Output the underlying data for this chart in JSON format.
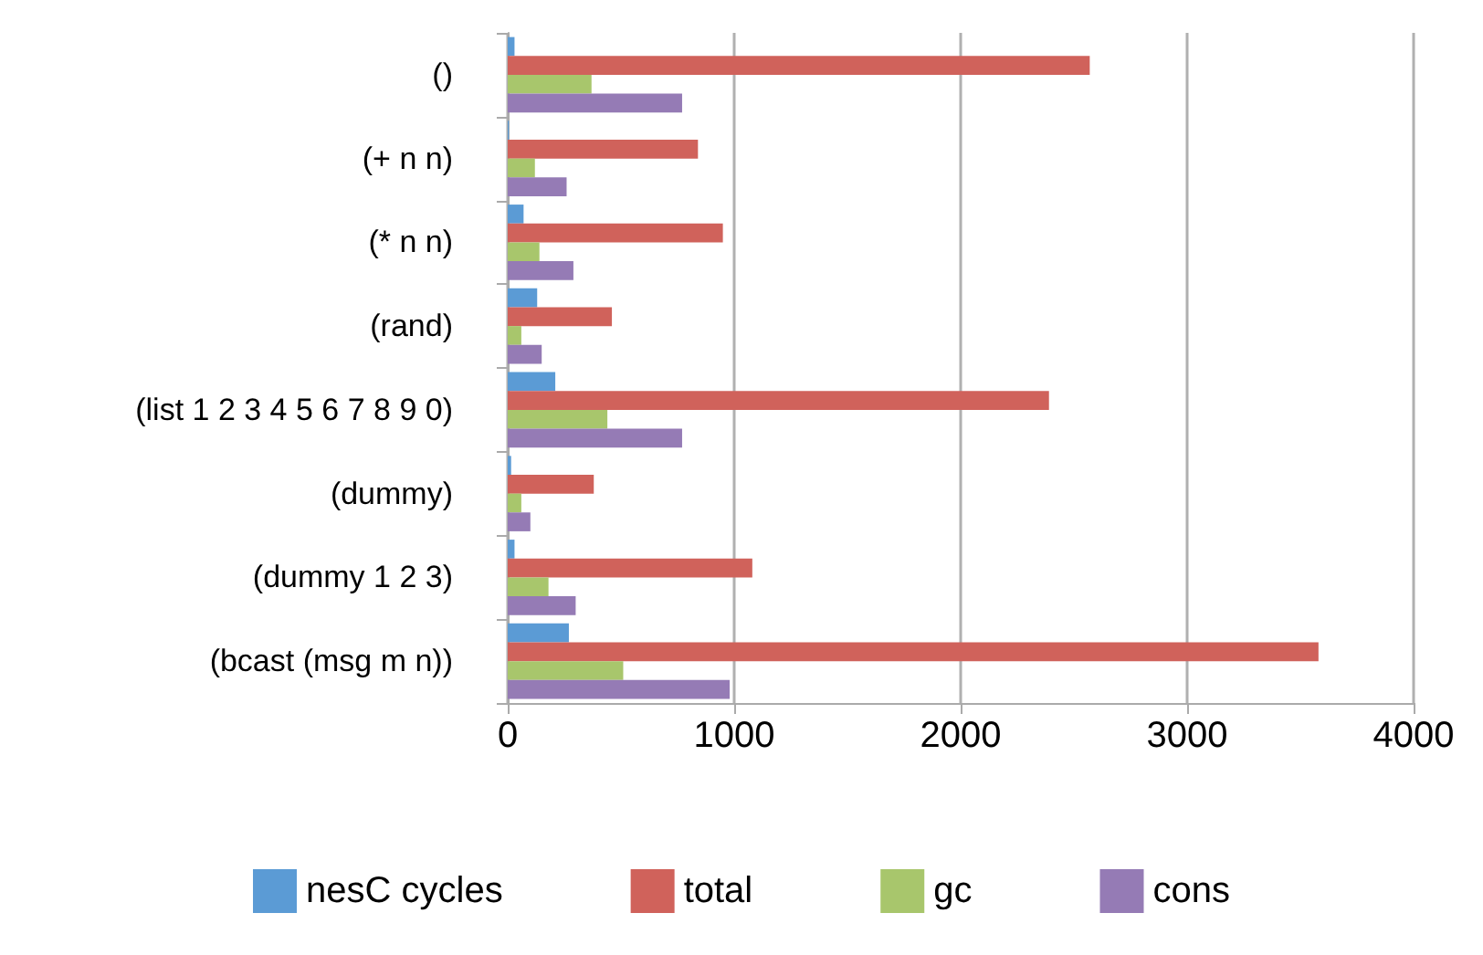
{
  "chart_data": {
    "type": "bar",
    "orientation": "horizontal",
    "categories": [
      "()",
      "(+ n n)",
      "(* n n)",
      "(rand)",
      "(list 1 2 3 4 5 6 7 8 9 0)",
      "(dummy)",
      "(dummy 1 2 3)",
      "(bcast (msg m n))"
    ],
    "series": [
      {
        "name": "nesC cycles",
        "color": "#5b9bd5",
        "values": [
          30,
          5,
          70,
          130,
          210,
          15,
          30,
          270
        ]
      },
      {
        "name": "total",
        "color": "#d0625b",
        "values": [
          2570,
          840,
          950,
          460,
          2390,
          380,
          1080,
          3580
        ]
      },
      {
        "name": "gc",
        "color": "#a8c66c",
        "values": [
          370,
          120,
          140,
          60,
          440,
          60,
          180,
          510
        ]
      },
      {
        "name": "cons",
        "color": "#957bb5",
        "values": [
          770,
          260,
          290,
          150,
          770,
          100,
          300,
          980
        ]
      }
    ],
    "xlim": [
      0,
      4000
    ],
    "xticks": [
      0,
      1000,
      2000,
      3000,
      4000
    ],
    "grid": "x",
    "legend": "bottom"
  }
}
